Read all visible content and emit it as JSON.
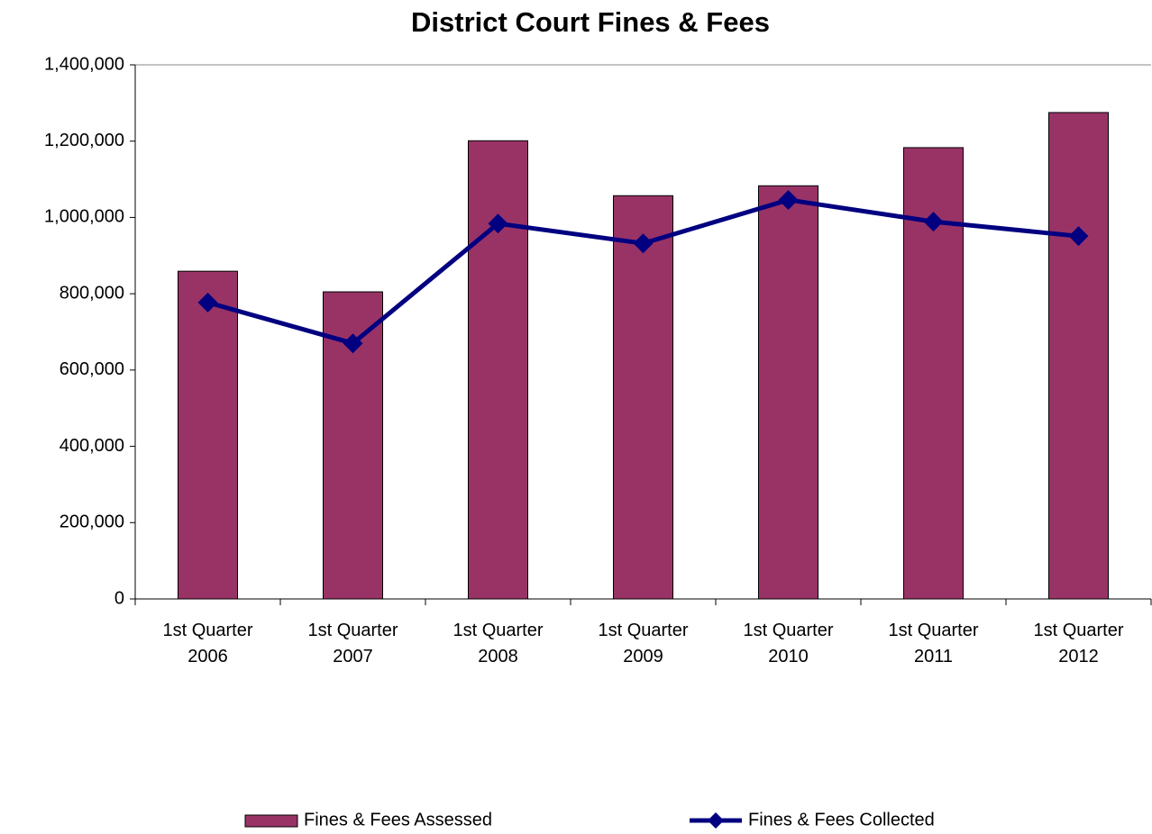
{
  "chart_data": {
    "type": "bar-line",
    "title": "District Court Fines & Fees",
    "categories": [
      "1st Quarter 2006",
      "1st Quarter 2007",
      "1st Quarter 2008",
      "1st Quarter 2009",
      "1st Quarter 2010",
      "1st Quarter 2011",
      "1st Quarter 2012"
    ],
    "series": [
      {
        "name": "Fines & Fees Assessed",
        "type": "bar",
        "color": "#993366",
        "values": [
          859000,
          805000,
          1201000,
          1057000,
          1083000,
          1183000,
          1275000
        ]
      },
      {
        "name": "Fines & Fees Collected",
        "type": "line",
        "color": "#000080",
        "values": [
          777000,
          670000,
          984000,
          932000,
          1046000,
          989000,
          951000
        ]
      }
    ],
    "ylim": [
      0,
      1400000
    ],
    "yticks": [
      0,
      {
        "value": 200000,
        "label": "200,000"
      },
      {
        "value": 400000,
        "label": "400,000"
      },
      {
        "value": 600000,
        "label": "600,000"
      },
      {
        "value": 800000,
        "label": "800,000"
      },
      {
        "value": 1000000,
        "label": "1,000,000"
      },
      {
        "value": 1200000,
        "label": "1,200,000"
      },
      {
        "value": 1400000,
        "label": "1,400,000"
      }
    ],
    "grid": false,
    "legend": "bottom"
  }
}
